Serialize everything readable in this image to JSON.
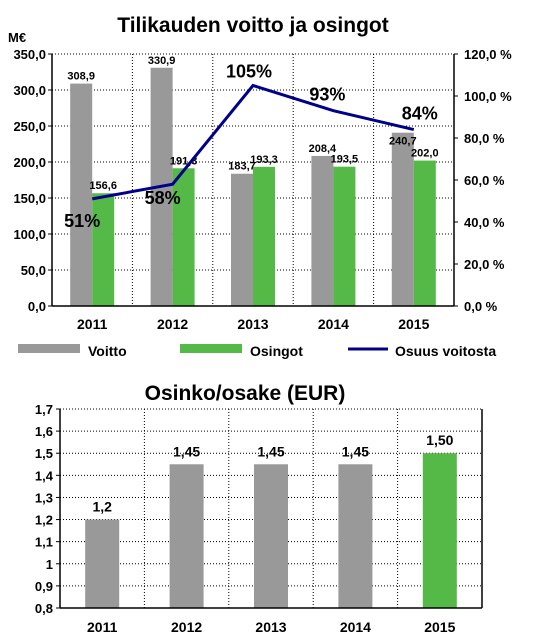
{
  "colors": {
    "voitto": "#999999",
    "osingot": "#55b948",
    "osuus": "#00008b",
    "plot_bg": "#ffffff",
    "grid": "#000000",
    "highlight_bar": "#55b948"
  },
  "chart_data": [
    {
      "type": "bar",
      "title": "Tilikauden voitto ja osingot",
      "y_unit": "M€",
      "categories": [
        "2011",
        "2012",
        "2013",
        "2014",
        "2015"
      ],
      "series": [
        {
          "name": "Voitto",
          "type": "bar",
          "values": [
            308.9,
            330.9,
            183.7,
            208.4,
            240.7
          ],
          "labels": [
            "308,9",
            "330,9",
            "183,7",
            "208,4",
            "240,7"
          ]
        },
        {
          "name": "Osingot",
          "type": "bar",
          "values": [
            156.6,
            191.3,
            193.3,
            193.5,
            202.0
          ],
          "labels": [
            "156,6",
            "191,3",
            "193,3",
            "193,5",
            "202,0"
          ]
        },
        {
          "name": "Osuus voitosta",
          "type": "line",
          "axis": "right",
          "values": [
            51,
            58,
            105,
            93,
            84
          ],
          "labels": [
            "51%",
            "58%",
            "105%",
            "93%",
            "84%"
          ]
        }
      ],
      "ylim": [
        0,
        350
      ],
      "yticks": [
        "0,0",
        "50,0",
        "100,0",
        "150,0",
        "200,0",
        "250,0",
        "300,0",
        "350,0"
      ],
      "y2lim": [
        0,
        120
      ],
      "y2ticks": [
        "0,0 %",
        "20,0 %",
        "40,0 %",
        "60,0 %",
        "80,0 %",
        "100,0 %",
        "120,0 %"
      ],
      "grid": true,
      "legend_position": "bottom"
    },
    {
      "type": "bar",
      "title": "Osinko/osake (EUR)",
      "categories": [
        "2011",
        "2012",
        "2013",
        "2014",
        "2015"
      ],
      "values": [
        1.2,
        1.45,
        1.45,
        1.45,
        1.5
      ],
      "labels": [
        "1,2",
        "1,45",
        "1,45",
        "1,45",
        "1,50"
      ],
      "highlight_index": 4,
      "ylim": [
        0.8,
        1.7
      ],
      "yticks": [
        "0,8",
        "0,9",
        "1",
        "1,1",
        "1,2",
        "1,3",
        "1,4",
        "1,5",
        "1,6",
        "1,7"
      ],
      "grid": true
    }
  ]
}
